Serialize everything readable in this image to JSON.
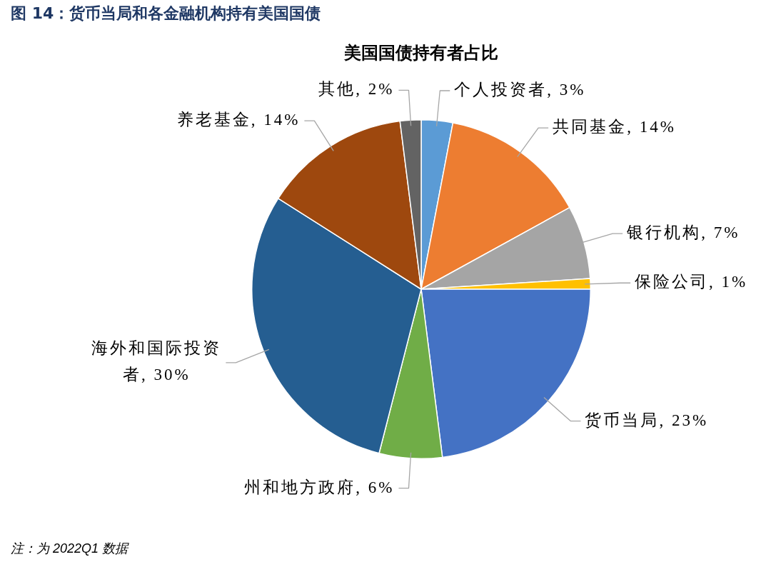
{
  "chart_data": {
    "type": "pie",
    "title": "图 14：货币当局和各金融机构持有美国国债",
    "subtitle": "美国国债持有者占比",
    "categories": [
      "个人投资者",
      "共同基金",
      "银行机构",
      "保险公司",
      "货币当局",
      "州和地方政府",
      "海外和国际投资者",
      "养老基金",
      "其他"
    ],
    "values": [
      3,
      14,
      7,
      1,
      23,
      6,
      30,
      14,
      2
    ],
    "value_labels": [
      "3%",
      "14%",
      "7%",
      "1%",
      "23%",
      "6%",
      "30%",
      "14%",
      "2%"
    ],
    "colors": [
      "#5b9bd5",
      "#ed7d31",
      "#a5a5a5",
      "#ffc000",
      "#4472c4",
      "#70ad47",
      "#255e91",
      "#9e480e",
      "#636363"
    ],
    "annotations": [
      "注：为 2022Q1 数据"
    ]
  }
}
